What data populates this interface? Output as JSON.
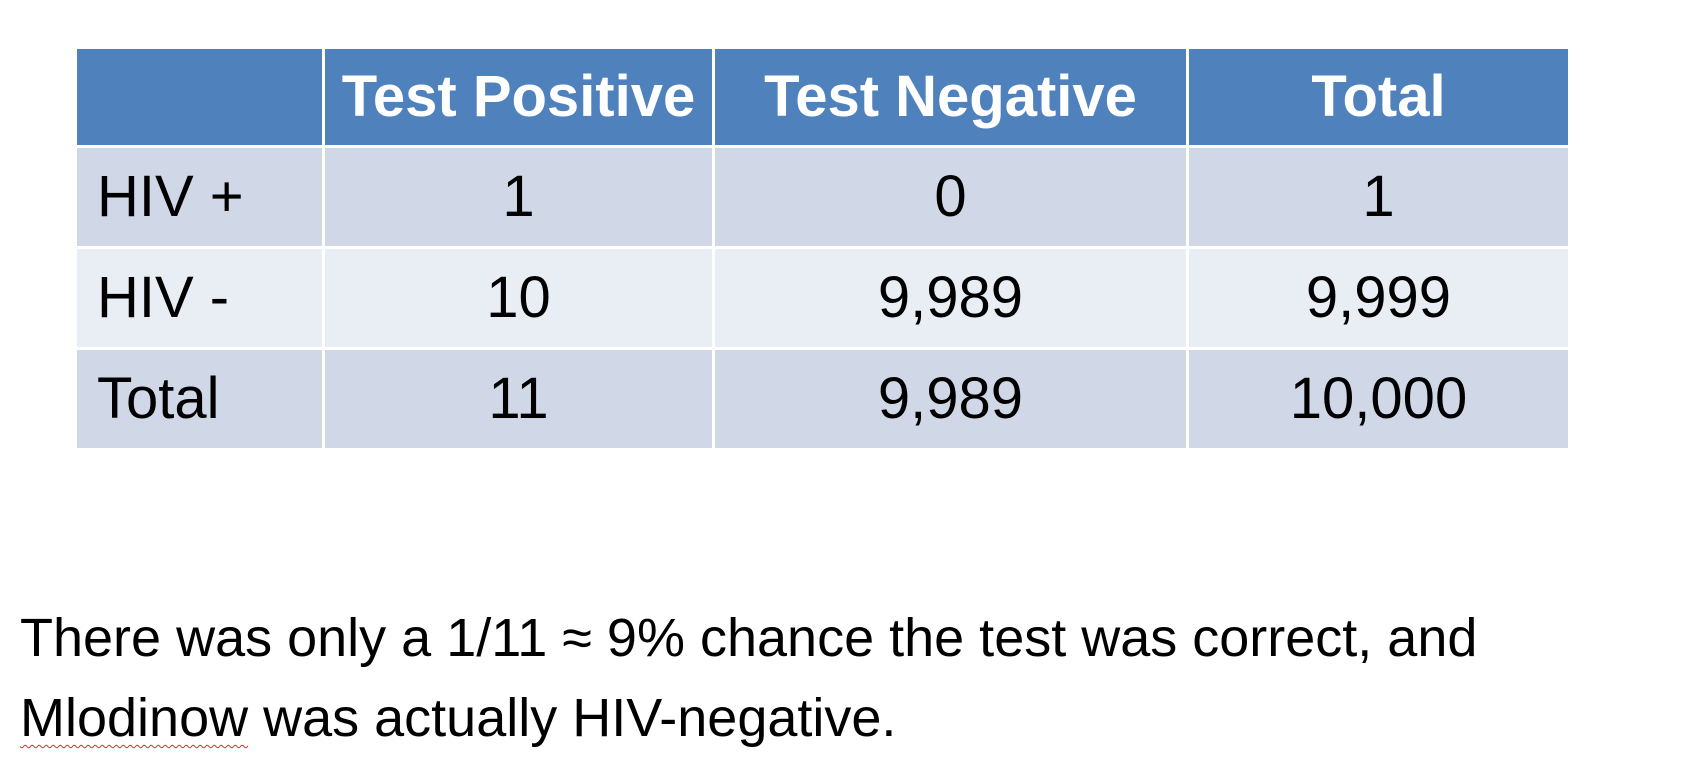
{
  "table": {
    "headers": [
      "",
      "Test Positive",
      "Test Negative",
      "Total"
    ],
    "rows": [
      {
        "label": "HIV +",
        "values": [
          "1",
          "0",
          "1"
        ]
      },
      {
        "label": "HIV -",
        "values": [
          "10",
          "9,989",
          "9,999"
        ]
      },
      {
        "label": "Total",
        "values": [
          "11",
          "9,989",
          "10,000"
        ]
      }
    ]
  },
  "caption": {
    "line1": "There was only a 1/11 ≈ 9% chance the test was correct, and",
    "line2_flagged_word": "Mlodinow",
    "line2_rest": " was actually HIV-negative."
  },
  "colors": {
    "header_bg": "#4f81bd",
    "row_odd_bg": "#d0d8e8",
    "row_even_bg": "#e9edf4",
    "spellcheck_underline": "#d03030"
  }
}
